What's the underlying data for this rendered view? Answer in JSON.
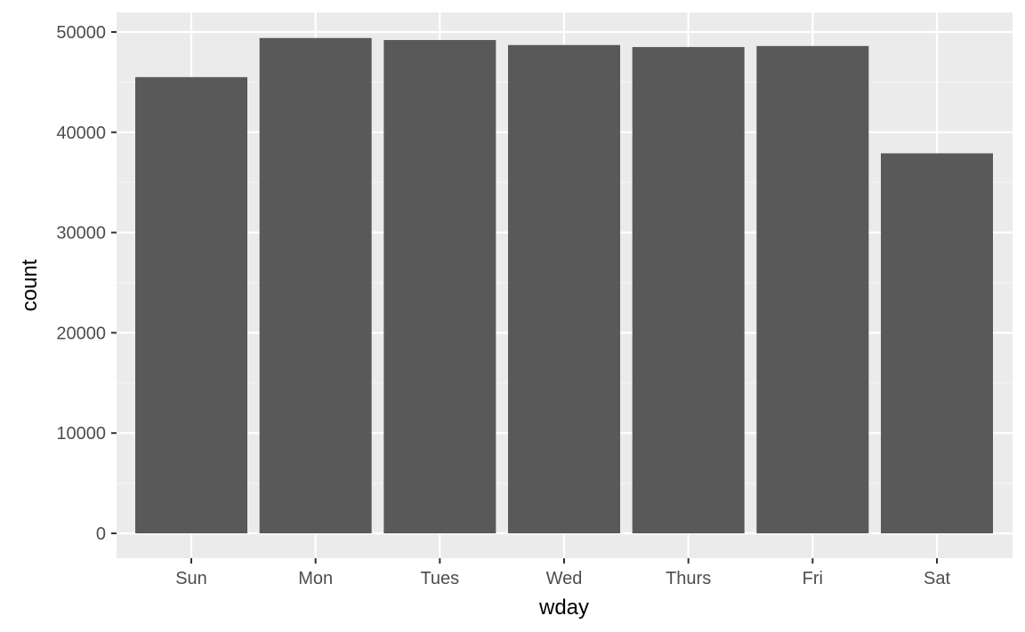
{
  "chart_data": {
    "type": "bar",
    "title": "",
    "xlabel": "wday",
    "ylabel": "count",
    "categories": [
      "Sun",
      "Mon",
      "Tues",
      "Wed",
      "Thurs",
      "Fri",
      "Sat"
    ],
    "values": [
      45500,
      49400,
      49200,
      48700,
      48500,
      48600,
      37900
    ],
    "ylim": [
      0,
      52500
    ],
    "yticks": [
      0,
      10000,
      20000,
      30000,
      40000,
      50000
    ],
    "ytick_labels": [
      "0",
      "10000",
      "20000",
      "30000",
      "40000",
      "50000"
    ],
    "grid": true,
    "colors": {
      "bar": "#595959",
      "panel_background": "#ebebeb",
      "grid_major": "#ffffff",
      "grid_minor": "#f5f5f5",
      "tick_text": "#4d4d4d",
      "tick_mark": "#333333"
    }
  }
}
